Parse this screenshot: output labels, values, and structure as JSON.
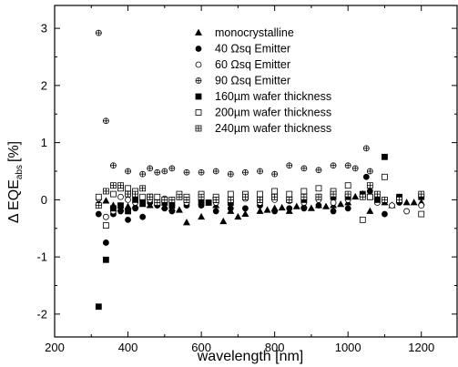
{
  "chart_data": {
    "type": "scatter",
    "xlabel": "wavelength [nm]",
    "ylabel": "Δ EQE",
    "ylabel_subscript": "abs",
    "ylabel_unit": "[%]",
    "xlim": [
      200,
      1300
    ],
    "ylim": [
      -2.4,
      3.4
    ],
    "xticks": [
      200,
      400,
      600,
      800,
      1000,
      1200
    ],
    "yticks": [
      -2,
      -1,
      0,
      1,
      2,
      3
    ],
    "legend_position": "top-center",
    "series": [
      {
        "name": "monocrystalline",
        "marker": "triangle-filled",
        "points": [
          [
            320,
            -0.05
          ],
          [
            340,
            -0.02
          ],
          [
            360,
            -0.1
          ],
          [
            380,
            -0.15
          ],
          [
            400,
            -0.12
          ],
          [
            420,
            -0.1
          ],
          [
            440,
            -0.08
          ],
          [
            460,
            -0.1
          ],
          [
            480,
            -0.05
          ],
          [
            500,
            -0.12
          ],
          [
            520,
            -0.15
          ],
          [
            540,
            -0.18
          ],
          [
            560,
            -0.4
          ],
          [
            600,
            -0.3
          ],
          [
            640,
            -0.1
          ],
          [
            660,
            -0.38
          ],
          [
            680,
            -0.2
          ],
          [
            700,
            -0.3
          ],
          [
            720,
            -0.25
          ],
          [
            760,
            -0.2
          ],
          [
            780,
            -0.18
          ],
          [
            800,
            -0.15
          ],
          [
            820,
            -0.14
          ],
          [
            840,
            -0.2
          ],
          [
            860,
            -0.12
          ],
          [
            880,
            -0.1
          ],
          [
            900,
            -0.15
          ],
          [
            920,
            -0.1
          ],
          [
            940,
            -0.12
          ],
          [
            960,
            -0.1
          ],
          [
            980,
            -0.08
          ],
          [
            1000,
            -0.05
          ],
          [
            1020,
            0.05
          ],
          [
            1040,
            0.1
          ],
          [
            1060,
            -0.2
          ],
          [
            1080,
            0.05
          ],
          [
            1100,
            -0.05
          ],
          [
            1120,
            -0.1
          ],
          [
            1140,
            0.0
          ],
          [
            1160,
            -0.05
          ],
          [
            1180,
            -0.05
          ],
          [
            1200,
            -0.05
          ]
        ]
      },
      {
        "name": "40 Ωsq Emitter",
        "marker": "circle-filled",
        "points": [
          [
            320,
            -0.25
          ],
          [
            340,
            -0.75
          ],
          [
            360,
            -0.25
          ],
          [
            380,
            -0.2
          ],
          [
            400,
            -0.35
          ],
          [
            420,
            -0.15
          ],
          [
            440,
            -0.3
          ],
          [
            460,
            -0.05
          ],
          [
            480,
            -0.1
          ],
          [
            500,
            -0.15
          ],
          [
            520,
            -0.2
          ],
          [
            560,
            -0.1
          ],
          [
            600,
            -0.1
          ],
          [
            640,
            -0.2
          ],
          [
            680,
            -0.15
          ],
          [
            720,
            -0.15
          ],
          [
            760,
            -0.1
          ],
          [
            800,
            -0.2
          ],
          [
            840,
            -0.15
          ],
          [
            880,
            -0.15
          ],
          [
            920,
            -0.1
          ],
          [
            960,
            -0.2
          ],
          [
            1000,
            -0.15
          ],
          [
            1050,
            0.4
          ],
          [
            1060,
            0.15
          ],
          [
            1100,
            -0.25
          ],
          [
            1140,
            -0.05
          ],
          [
            1200,
            0.05
          ]
        ]
      },
      {
        "name": "60 Ωsq Emitter",
        "marker": "circle-open",
        "points": [
          [
            320,
            0.02
          ],
          [
            340,
            -0.3
          ],
          [
            360,
            -0.2
          ],
          [
            380,
            0.05
          ],
          [
            400,
            0.0
          ],
          [
            420,
            -0.05
          ],
          [
            440,
            -0.02
          ],
          [
            460,
            0.0
          ],
          [
            480,
            -0.05
          ],
          [
            500,
            0.02
          ],
          [
            520,
            -0.1
          ],
          [
            560,
            -0.05
          ],
          [
            600,
            0.0
          ],
          [
            640,
            -0.05
          ],
          [
            680,
            0.0
          ],
          [
            720,
            0.02
          ],
          [
            760,
            -0.05
          ],
          [
            800,
            0.0
          ],
          [
            840,
            -0.02
          ],
          [
            880,
            -0.05
          ],
          [
            920,
            0.0
          ],
          [
            960,
            -0.05
          ],
          [
            1000,
            0.0
          ],
          [
            1040,
            0.05
          ],
          [
            1080,
            -0.05
          ],
          [
            1120,
            -0.1
          ],
          [
            1160,
            -0.2
          ],
          [
            1200,
            -0.1
          ]
        ]
      },
      {
        "name": "90 Ωsq Emitter",
        "marker": "circle-cross",
        "points": [
          [
            320,
            2.92
          ],
          [
            340,
            1.38
          ],
          [
            360,
            0.6
          ],
          [
            400,
            0.5
          ],
          [
            440,
            0.45
          ],
          [
            460,
            0.55
          ],
          [
            480,
            0.48
          ],
          [
            500,
            0.5
          ],
          [
            520,
            0.55
          ],
          [
            560,
            0.48
          ],
          [
            600,
            0.48
          ],
          [
            640,
            0.5
          ],
          [
            680,
            0.45
          ],
          [
            720,
            0.48
          ],
          [
            760,
            0.5
          ],
          [
            800,
            0.45
          ],
          [
            840,
            0.6
          ],
          [
            880,
            0.55
          ],
          [
            920,
            0.52
          ],
          [
            960,
            0.6
          ],
          [
            1000,
            0.6
          ],
          [
            1020,
            0.55
          ],
          [
            1050,
            0.9
          ],
          [
            1060,
            0.5
          ],
          [
            1100,
            0.0
          ],
          [
            1140,
            0.05
          ],
          [
            1200,
            0.05
          ]
        ]
      },
      {
        "name": "160µm wafer thickness",
        "marker": "square-filled",
        "points": [
          [
            320,
            -1.87
          ],
          [
            340,
            -1.05
          ],
          [
            360,
            -0.15
          ],
          [
            380,
            -0.1
          ],
          [
            400,
            -0.2
          ],
          [
            420,
            0.0
          ],
          [
            440,
            -0.05
          ],
          [
            460,
            0.05
          ],
          [
            480,
            -0.05
          ],
          [
            500,
            -0.05
          ],
          [
            520,
            -0.1
          ],
          [
            540,
            0.05
          ],
          [
            560,
            0.0
          ],
          [
            600,
            -0.05
          ],
          [
            620,
            -0.05
          ],
          [
            640,
            0.0
          ],
          [
            680,
            -0.05
          ],
          [
            720,
            0.05
          ],
          [
            760,
            0.0
          ],
          [
            800,
            0.05
          ],
          [
            840,
            0.0
          ],
          [
            880,
            0.0
          ],
          [
            920,
            0.05
          ],
          [
            960,
            0.05
          ],
          [
            1000,
            0.05
          ],
          [
            1040,
            0.1
          ],
          [
            1060,
            0.05
          ],
          [
            1080,
            0.0
          ],
          [
            1100,
            0.75
          ],
          [
            1140,
            0.05
          ],
          [
            1200,
            0.05
          ]
        ]
      },
      {
        "name": "200µm wafer thickness",
        "marker": "square-open",
        "points": [
          [
            320,
            0.05
          ],
          [
            340,
            -0.45
          ],
          [
            360,
            0.1
          ],
          [
            380,
            0.2
          ],
          [
            400,
            0.2
          ],
          [
            420,
            0.15
          ],
          [
            440,
            0.05
          ],
          [
            460,
            0.05
          ],
          [
            480,
            0.05
          ],
          [
            500,
            0.0
          ],
          [
            540,
            0.1
          ],
          [
            560,
            0.05
          ],
          [
            600,
            0.1
          ],
          [
            640,
            0.05
          ],
          [
            680,
            0.1
          ],
          [
            720,
            0.1
          ],
          [
            760,
            0.1
          ],
          [
            800,
            0.15
          ],
          [
            840,
            0.1
          ],
          [
            880,
            0.15
          ],
          [
            920,
            0.2
          ],
          [
            960,
            0.15
          ],
          [
            1000,
            0.25
          ],
          [
            1040,
            -0.35
          ],
          [
            1060,
            0.05
          ],
          [
            1100,
            0.4
          ],
          [
            1140,
            0.0
          ],
          [
            1200,
            -0.25
          ]
        ]
      },
      {
        "name": "240µm wafer thickness",
        "marker": "square-cross",
        "points": [
          [
            320,
            -0.1
          ],
          [
            340,
            0.15
          ],
          [
            360,
            0.25
          ],
          [
            380,
            0.25
          ],
          [
            400,
            0.1
          ],
          [
            420,
            0.1
          ],
          [
            440,
            0.2
          ],
          [
            460,
            0.05
          ],
          [
            480,
            -0.05
          ],
          [
            500,
            0.0
          ],
          [
            520,
            0.0
          ],
          [
            540,
            0.05
          ],
          [
            560,
            0.0
          ],
          [
            600,
            0.05
          ],
          [
            640,
            0.0
          ],
          [
            680,
            0.0
          ],
          [
            720,
            0.05
          ],
          [
            760,
            0.0
          ],
          [
            800,
            0.05
          ],
          [
            840,
            0.0
          ],
          [
            880,
            0.05
          ],
          [
            920,
            0.05
          ],
          [
            960,
            0.1
          ],
          [
            1000,
            0.1
          ],
          [
            1040,
            0.05
          ],
          [
            1060,
            0.25
          ],
          [
            1080,
            0.1
          ],
          [
            1100,
            0.0
          ],
          [
            1140,
            0.0
          ],
          [
            1200,
            0.1
          ]
        ]
      }
    ]
  }
}
